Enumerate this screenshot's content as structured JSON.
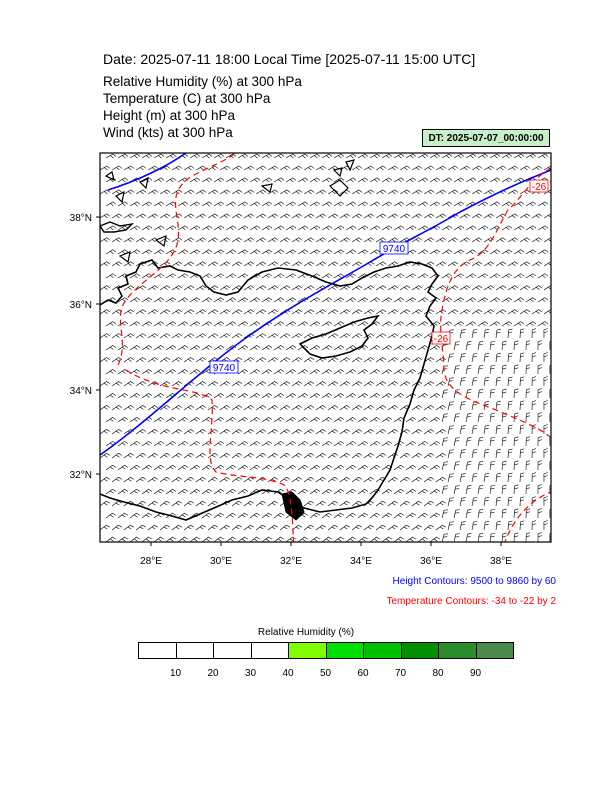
{
  "title": "Date: 2025-07-11  18:00 Local Time [2025-07-11  15:00 UTC]",
  "fields": [
    "Relative Humidity   (%)      at   300 hPa",
    "Temperature   (C)     at   300 hPa",
    "Height   (m)     at   300 hPa",
    "Wind   (kts)     at   300 hPa"
  ],
  "dt_badge": "DT: 2025-07-07_00:00:00",
  "map": {
    "lat_ticks": [
      "38°N",
      "36°N",
      "34°N",
      "32°N"
    ],
    "lon_ticks": [
      "28°E",
      "30°E",
      "32°E",
      "34°E",
      "36°E",
      "38°E"
    ],
    "height_contour_labels": [
      "9740",
      "9740"
    ],
    "temperature_contour_labels": [
      "-26",
      "-26"
    ],
    "colors": {
      "height": "#0000ff",
      "temperature": "#ff0000",
      "coast": "#000000"
    }
  },
  "legend": {
    "height": "Height Contours: 9500 to 9860 by 60",
    "temperature": "Temperature Contours: -34 to -22 by 2"
  },
  "colorbar": {
    "title": "Relative Humidity  (%)",
    "labels": [
      "10",
      "20",
      "30",
      "40",
      "50",
      "60",
      "70",
      "80",
      "90"
    ],
    "colors": [
      "#ffffff",
      "#ffffff",
      "#ffffff",
      "#ffffff",
      "#7fff00",
      "#00e000",
      "#00c000",
      "#009000",
      "#2a8c2a",
      "#4a8a4a"
    ]
  }
}
